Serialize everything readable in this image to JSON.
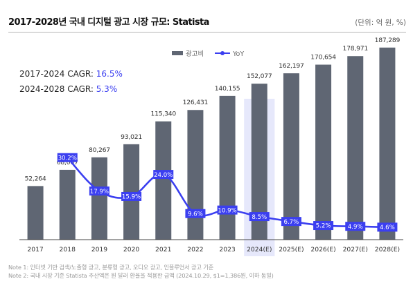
{
  "header": {
    "title": "2017-2028년 국내 디지털 광고 시장 규모: Statista",
    "unit": "(단위: 억 원, %)"
  },
  "cagr": [
    {
      "label": "2017-2024 CAGR: ",
      "value": "16.5%"
    },
    {
      "label": "2024-2028 CAGR: ",
      "value": "5.3%"
    }
  ],
  "notes": [
    "Note 1: 인터넷 기반 검색/노출형 광고, 분류형 광고, 오디오 광고, 인플루언서 광고 기준",
    "Note 2: 국내 시장 기준 Statista 추산액은 원 달러 환율을 적용한 금액 (2024.10.29, $1=1,386원, 이하 동일)"
  ],
  "colors": {
    "bar": "#5f6673",
    "line": "#3b3ff0",
    "highlight": "#e6e8fb",
    "axis": "#444444"
  },
  "chart_data": {
    "type": "bar",
    "categories": [
      "2017",
      "2018",
      "2019",
      "2020",
      "2021",
      "2022",
      "2023",
      "2024(E)",
      "2025(E)",
      "2026(E)",
      "2027(E)",
      "2028(E)"
    ],
    "highlight_category": "2024(E)",
    "series": [
      {
        "name": "광고비",
        "type": "bar",
        "values": [
          52264,
          68067,
          80267,
          93021,
          115340,
          126431,
          140155,
          152077,
          162197,
          170654,
          178971,
          187289
        ],
        "labels": [
          "52,264",
          "68,067",
          "80,267",
          "93,021",
          "115,340",
          "126,431",
          "140,155",
          "152,077",
          "162,197",
          "170,654",
          "178,971",
          "187,289"
        ]
      },
      {
        "name": "YoY",
        "type": "line",
        "values": [
          null,
          30.2,
          17.9,
          15.9,
          24.0,
          9.6,
          10.9,
          8.5,
          6.7,
          5.2,
          4.9,
          4.6
        ],
        "labels": [
          "",
          "30.2%",
          "17.9%",
          "15.9%",
          "24.0%",
          "9.6%",
          "10.9%",
          "8.5%",
          "6.7%",
          "5.2%",
          "4.9%",
          "4.6%"
        ]
      }
    ],
    "ylim_bar": [
      0,
      200000
    ],
    "ylim_line": [
      0,
      45
    ],
    "legend_position": "top-center",
    "grid": false
  }
}
